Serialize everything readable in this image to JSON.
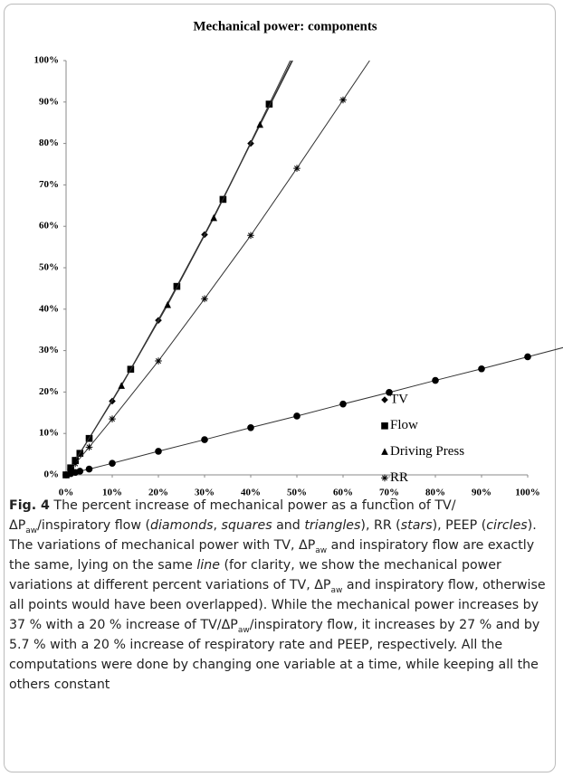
{
  "chart_data": {
    "type": "scatter",
    "title": "Mechanical power: components",
    "xlim": [
      0,
      100
    ],
    "ylim": [
      0,
      100
    ],
    "xticks": [
      {
        "value": 0,
        "label": "0%"
      },
      {
        "value": 10,
        "label": "10%"
      },
      {
        "value": 20,
        "label": "20%"
      },
      {
        "value": 30,
        "label": "30%"
      },
      {
        "value": 40,
        "label": "40%"
      },
      {
        "value": 50,
        "label": "50%"
      },
      {
        "value": 60,
        "label": "60%"
      },
      {
        "value": 70,
        "label": "70%"
      },
      {
        "value": 80,
        "label": "80%"
      },
      {
        "value": 90,
        "label": "90%"
      },
      {
        "value": 100,
        "label": "100%"
      }
    ],
    "yticks": [
      {
        "value": 0,
        "label": "0%"
      },
      {
        "value": 10,
        "label": "10%"
      },
      {
        "value": 20,
        "label": "20%"
      },
      {
        "value": 30,
        "label": "30%"
      },
      {
        "value": 40,
        "label": "40%"
      },
      {
        "value": 50,
        "label": "50%"
      },
      {
        "value": 60,
        "label": "60%"
      },
      {
        "value": 70,
        "label": "70%"
      },
      {
        "value": 80,
        "label": "80%"
      },
      {
        "value": 90,
        "label": "90%"
      },
      {
        "value": 100,
        "label": "100%"
      }
    ],
    "legend": "center right",
    "series": [
      {
        "name": "TV",
        "marker": "diamond",
        "color": "#000000",
        "x": [
          0,
          1,
          2,
          5,
          10,
          20,
          30,
          40
        ],
        "values": [
          0,
          1.7,
          3.5,
          8.8,
          17.8,
          37.3,
          58,
          80
        ]
      },
      {
        "name": "Flow",
        "marker": "square",
        "color": "#000000",
        "x": [
          0,
          1,
          2,
          3,
          5,
          14,
          24,
          34,
          44
        ],
        "values": [
          0,
          1.7,
          3.5,
          5.2,
          8.8,
          25.5,
          45.5,
          66.5,
          89.5
        ]
      },
      {
        "name": "Driving Press",
        "marker": "triangle",
        "color": "#000000",
        "x": [
          2,
          12,
          22,
          32,
          42
        ],
        "values": [
          3.5,
          21.5,
          41,
          62,
          84.5
        ]
      },
      {
        "name": "RR",
        "marker": "star",
        "color": "#000000",
        "x": [
          1,
          2,
          5,
          10,
          20,
          30,
          40,
          50,
          60
        ],
        "values": [
          1.3,
          2.7,
          6.7,
          13.5,
          27.5,
          42.5,
          57.8,
          74,
          90.5
        ]
      },
      {
        "name": "Peep",
        "marker": "circle",
        "color": "#000000",
        "x": [
          0,
          1,
          2,
          3,
          5,
          10,
          20,
          30,
          40,
          50,
          60,
          70,
          80,
          90,
          100
        ],
        "values": [
          0,
          0.3,
          0.6,
          0.9,
          1.4,
          2.8,
          5.7,
          8.5,
          11.4,
          14.2,
          17.1,
          19.9,
          22.8,
          25.6,
          28.5
        ]
      }
    ]
  },
  "caption": [
    "Fig. 4",
    " The percent increase of mechanical power as a function of TV/ΔP",
    "aw",
    "/inspiratory flow (",
    "diamonds",
    ", ",
    "squares",
    " and ",
    "triangles",
    "), RR (",
    "stars",
    "), PEEP (",
    "circles",
    "). The variations of mechanical power with TV, ΔP",
    "aw",
    " and inspiratory flow are exactly the same, lying on the same ",
    "line",
    " (for clarity, we show the mechanical power variations at different percent variations of TV, ΔP",
    "aw",
    " and inspiratory flow, otherwise all points would have been overlapped). While the mechanical power increases by 37 % with a 20 % increase of TV/ΔP",
    "aw",
    "/inspiratory flow, it increases by 27 % and by 5.7 % with a 20 % increase of respiratory rate and PEEP, respectively. All the computations were done by changing one variable at a time, while keeping all the others constant"
  ]
}
